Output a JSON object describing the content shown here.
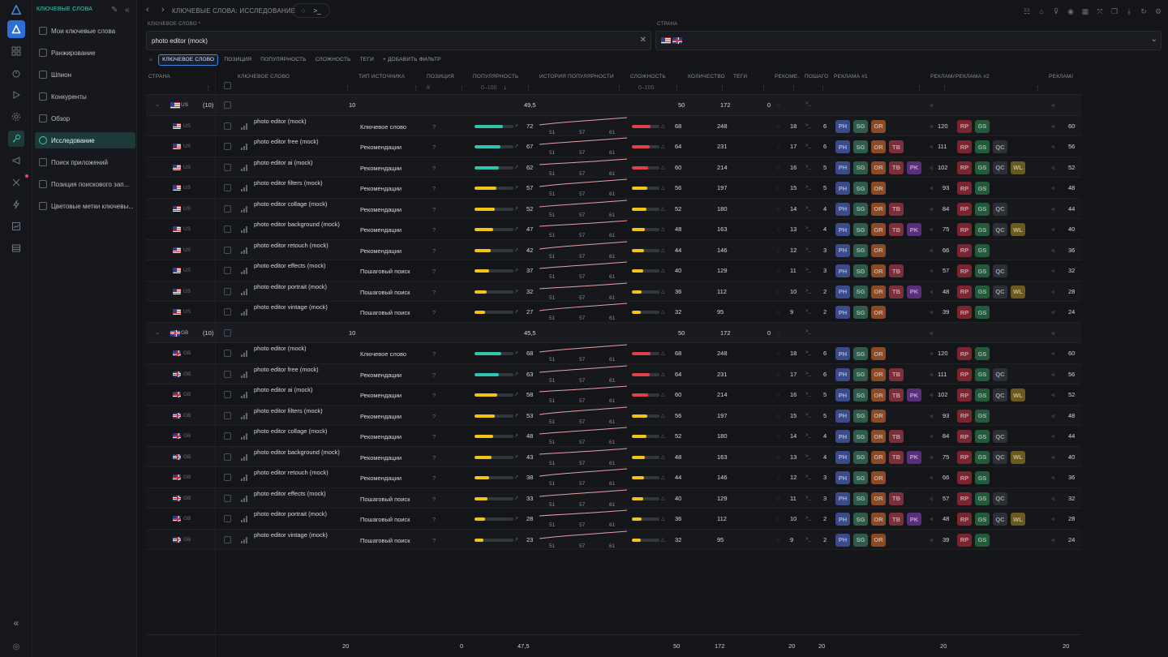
{
  "app": {
    "rail_icons": [
      "logo-icon",
      "app-icon",
      "dashboard-icon",
      "timer-icon",
      "play-icon",
      "settings-icon",
      "key-icon",
      "megaphone-icon",
      "puzzle-icon",
      "bolt-icon",
      "chart-icon",
      "archive-icon"
    ],
    "collapse_icon": "chevrons-left-icon",
    "help_icon": "help-icon"
  },
  "sidebar": {
    "title": "КЛЮЧЕВЫЕ СЛОВА",
    "items": [
      {
        "label": "Мои ключевые слова",
        "icon": "list-icon"
      },
      {
        "label": "Ранжирование",
        "icon": "key-icon"
      },
      {
        "label": "Шпион",
        "icon": "spy-icon"
      },
      {
        "label": "Конкуренты",
        "icon": "competitors-icon"
      },
      {
        "label": "Обзор",
        "icon": "overview-icon"
      },
      {
        "label": "Исследование",
        "icon": "research-icon",
        "active": true
      },
      {
        "label": "Поиск приложений",
        "icon": "bar-chart-icon"
      },
      {
        "label": "Позиция поискового зап...",
        "icon": "doc-icon"
      },
      {
        "label": "Цветовые метки ключевы...",
        "icon": "tag-icon"
      }
    ]
  },
  "topbar": {
    "breadcrumb": "КЛЮЧЕВЫЕ СЛОВА: ИССЛЕДОВАНИЕ",
    "prompt_button": ">_"
  },
  "keyword_field": {
    "label": "КЛЮЧЕВОЕ СЛОВО *",
    "value": "photo editor (mock)"
  },
  "country_field": {
    "label": "СТРАНА",
    "flags": [
      "us",
      "gb"
    ]
  },
  "filters": [
    {
      "label": "КЛЮЧЕВОЕ СЛОВО",
      "active": true
    },
    {
      "label": "ПОЗИЦИЯ"
    },
    {
      "label": "ПОПУЛЯРНОСТЬ"
    },
    {
      "label": "СЛОЖНОСТЬ"
    },
    {
      "label": "ТЕГИ"
    },
    {
      "label": "+ ДОБАВИТЬ ФИЛЬТР"
    }
  ],
  "columns": {
    "country": "СТРАНА",
    "keyword": "КЛЮЧЕВОЕ СЛОВО",
    "source": "ТИП ИСТОЧНИКА",
    "position": "ПОЗИЦИЯ",
    "position_sub": "#",
    "popularity": "ПОПУЛЯРНОСТЬ",
    "popularity_range": "0–100",
    "history": "ИСТОРИЯ ПОПУЛЯРНОСТИ",
    "difficulty": "СЛОЖНОСТЬ",
    "difficulty_range": "0–100",
    "count": "КОЛИЧЕСТВО",
    "tags": "ТЕГИ",
    "recommend": "РЕКОМЕ...",
    "stepsearch": "ПОШАГО... ПОИСК",
    "ads1": "РЕКЛАМА #1",
    "ads1_count": "РЕКЛАМА...",
    "ads2": "РЕКЛАМА #2",
    "ads2_count": "РЕКЛАМА..."
  },
  "groups": [
    {
      "country": "US",
      "count_label": "(10)",
      "agg": {
        "keywords": "10",
        "popularity": "49,5",
        "difficulty": "50",
        "count": "172",
        "tags": "0"
      },
      "rows": [
        {
          "kw": "photo editor (mock)",
          "src": "Ключевое слово",
          "pos": "?",
          "pop": 72,
          "diff": 68,
          "cnt": "248",
          "rec": "18",
          "step": "6",
          "a1": [
            "PH",
            "SG",
            "OR"
          ],
          "a1c": "120",
          "a2": [
            "RP",
            "GS"
          ],
          "a2c": "60"
        },
        {
          "kw": "photo editor free (mock)",
          "src": "Рекомендации",
          "pos": "?",
          "pop": 67,
          "diff": 64,
          "cnt": "231",
          "rec": "17",
          "step": "6",
          "a1": [
            "PH",
            "SG",
            "OR",
            "TB"
          ],
          "a1c": "111",
          "a2": [
            "RP",
            "GS",
            "QC"
          ],
          "a2c": "56"
        },
        {
          "kw": "photo editor ai (mock)",
          "src": "Рекомендации",
          "pos": "?",
          "pop": 62,
          "diff": 60,
          "cnt": "214",
          "rec": "16",
          "step": "5",
          "a1": [
            "PH",
            "SG",
            "OR",
            "TB",
            "PK"
          ],
          "a1c": "102",
          "a2": [
            "RP",
            "GS",
            "QC",
            "WL"
          ],
          "a2c": "52"
        },
        {
          "kw": "photo editor filters (mock)",
          "src": "Рекомендации",
          "pos": "?",
          "pop": 57,
          "diff": 56,
          "cnt": "197",
          "rec": "15",
          "step": "5",
          "a1": [
            "PH",
            "SG",
            "OR"
          ],
          "a1c": "93",
          "a2": [
            "RP",
            "GS"
          ],
          "a2c": "48"
        },
        {
          "kw": "photo editor collage (mock)",
          "src": "Рекомендации",
          "pos": "?",
          "pop": 52,
          "diff": 52,
          "cnt": "180",
          "rec": "14",
          "step": "4",
          "a1": [
            "PH",
            "SG",
            "OR",
            "TB"
          ],
          "a1c": "84",
          "a2": [
            "RP",
            "GS",
            "QC"
          ],
          "a2c": "44"
        },
        {
          "kw": "photo editor background (mock)",
          "src": "Рекомендации",
          "pos": "?",
          "pop": 47,
          "diff": 48,
          "cnt": "163",
          "rec": "13",
          "step": "4",
          "a1": [
            "PH",
            "SG",
            "OR",
            "TB",
            "PK"
          ],
          "a1c": "75",
          "a2": [
            "RP",
            "GS",
            "QC",
            "WL"
          ],
          "a2c": "40"
        },
        {
          "kw": "photo editor retouch (mock)",
          "src": "Рекомендации",
          "pos": "?",
          "pop": 42,
          "diff": 44,
          "cnt": "146",
          "rec": "12",
          "step": "3",
          "a1": [
            "PH",
            "SG",
            "OR"
          ],
          "a1c": "66",
          "a2": [
            "RP",
            "GS"
          ],
          "a2c": "36"
        },
        {
          "kw": "photo editor effects (mock)",
          "src": "Пошаговый поиск",
          "pos": "?",
          "pop": 37,
          "diff": 40,
          "cnt": "129",
          "rec": "11",
          "step": "3",
          "a1": [
            "PH",
            "SG",
            "OR",
            "TB"
          ],
          "a1c": "57",
          "a2": [
            "RP",
            "GS",
            "QC"
          ],
          "a2c": "32"
        },
        {
          "kw": "photo editor portrait (mock)",
          "src": "Пошаговый поиск",
          "pos": "?",
          "pop": 32,
          "diff": 36,
          "cnt": "112",
          "rec": "10",
          "step": "2",
          "a1": [
            "PH",
            "SG",
            "OR",
            "TB",
            "PK"
          ],
          "a1c": "48",
          "a2": [
            "RP",
            "GS",
            "QC",
            "WL"
          ],
          "a2c": "28"
        },
        {
          "kw": "photo editor vintage (mock)",
          "src": "Пошаговый поиск",
          "pos": "?",
          "pop": 27,
          "diff": 32,
          "cnt": "95",
          "rec": "9",
          "step": "2",
          "a1": [
            "PH",
            "SG",
            "OR"
          ],
          "a1c": "39",
          "a2": [
            "RP",
            "GS"
          ],
          "a2c": "24"
        }
      ]
    },
    {
      "country": "GB",
      "count_label": "(10)",
      "agg": {
        "keywords": "10",
        "popularity": "45,5",
        "difficulty": "50",
        "count": "172",
        "tags": "0"
      },
      "rows": [
        {
          "kw": "photo editor (mock)",
          "src": "Ключевое слово",
          "pos": "?",
          "pop": 68,
          "diff": 68,
          "cnt": "248",
          "rec": "18",
          "step": "6",
          "a1": [
            "PH",
            "SG",
            "OR"
          ],
          "a1c": "120",
          "a2": [
            "RP",
            "GS"
          ],
          "a2c": "60"
        },
        {
          "kw": "photo editor free (mock)",
          "src": "Рекомендации",
          "pos": "?",
          "pop": 63,
          "diff": 64,
          "cnt": "231",
          "rec": "17",
          "step": "6",
          "a1": [
            "PH",
            "SG",
            "OR",
            "TB"
          ],
          "a1c": "111",
          "a2": [
            "RP",
            "GS",
            "QC"
          ],
          "a2c": "56"
        },
        {
          "kw": "photo editor ai (mock)",
          "src": "Рекомендации",
          "pos": "?",
          "pop": 58,
          "diff": 60,
          "cnt": "214",
          "rec": "16",
          "step": "5",
          "a1": [
            "PH",
            "SG",
            "OR",
            "TB",
            "PK"
          ],
          "a1c": "102",
          "a2": [
            "RP",
            "GS",
            "QC",
            "WL"
          ],
          "a2c": "52"
        },
        {
          "kw": "photo editor filters (mock)",
          "src": "Рекомендации",
          "pos": "?",
          "pop": 53,
          "diff": 56,
          "cnt": "197",
          "rec": "15",
          "step": "5",
          "a1": [
            "PH",
            "SG",
            "OR"
          ],
          "a1c": "93",
          "a2": [
            "RP",
            "GS"
          ],
          "a2c": "48"
        },
        {
          "kw": "photo editor collage (mock)",
          "src": "Рекомендации",
          "pos": "?",
          "pop": 48,
          "diff": 52,
          "cnt": "180",
          "rec": "14",
          "step": "4",
          "a1": [
            "PH",
            "SG",
            "OR",
            "TB"
          ],
          "a1c": "84",
          "a2": [
            "RP",
            "GS",
            "QC"
          ],
          "a2c": "44"
        },
        {
          "kw": "photo editor background (mock)",
          "src": "Рекомендации",
          "pos": "?",
          "pop": 43,
          "diff": 48,
          "cnt": "163",
          "rec": "13",
          "step": "4",
          "a1": [
            "PH",
            "SG",
            "OR",
            "TB",
            "PK"
          ],
          "a1c": "75",
          "a2": [
            "RP",
            "GS",
            "QC",
            "WL"
          ],
          "a2c": "40"
        },
        {
          "kw": "photo editor retouch (mock)",
          "src": "Рекомендации",
          "pos": "?",
          "pop": 38,
          "diff": 44,
          "cnt": "146",
          "rec": "12",
          "step": "3",
          "a1": [
            "PH",
            "SG",
            "OR"
          ],
          "a1c": "66",
          "a2": [
            "RP",
            "GS"
          ],
          "a2c": "36"
        },
        {
          "kw": "photo editor effects (mock)",
          "src": "Пошаговый поиск",
          "pos": "?",
          "pop": 33,
          "diff": 40,
          "cnt": "129",
          "rec": "11",
          "step": "3",
          "a1": [
            "PH",
            "SG",
            "OR",
            "TB"
          ],
          "a1c": "57",
          "a2": [
            "RP",
            "GS",
            "QC"
          ],
          "a2c": "32"
        },
        {
          "kw": "photo editor portrait (mock)",
          "src": "Пошаговый поиск",
          "pos": "?",
          "pop": 28,
          "diff": 36,
          "cnt": "112",
          "rec": "10",
          "step": "2",
          "a1": [
            "PH",
            "SG",
            "OR",
            "TB",
            "PK"
          ],
          "a1c": "48",
          "a2": [
            "RP",
            "GS",
            "QC",
            "WL"
          ],
          "a2c": "28"
        },
        {
          "kw": "photo editor vintage (mock)",
          "src": "Пошаговый поиск",
          "pos": "?",
          "pop": 23,
          "diff": 32,
          "cnt": "95",
          "rec": "9",
          "step": "2",
          "a1": [
            "PH",
            "SG",
            "OR"
          ],
          "a1c": "39",
          "a2": [
            "RP",
            "GS"
          ],
          "a2c": "24"
        }
      ]
    }
  ],
  "history_labels": [
    "51",
    "57",
    "61"
  ],
  "footer": {
    "keywords": "20",
    "position": "0",
    "popularity": "47,5",
    "difficulty": "50",
    "count": "172",
    "recommend": "20",
    "step": "20",
    "ads1": "20",
    "ads2": "20"
  },
  "colors": {
    "accent": "#35d0b5",
    "pop_high": "#2ec4b0",
    "pop_mid": "#f0c419",
    "diff_high": "#e0404a",
    "tags": {
      "PH": "#3b4a8a",
      "SG": "#2f5c4a",
      "OR": "#8a4a25",
      "TB": "#7a2f3a",
      "PK": "#5a2f7a",
      "RP": "#7a2530",
      "GS": "#235a3a",
      "QC": "#2c2f36",
      "WL": "#6a5a1f"
    }
  }
}
